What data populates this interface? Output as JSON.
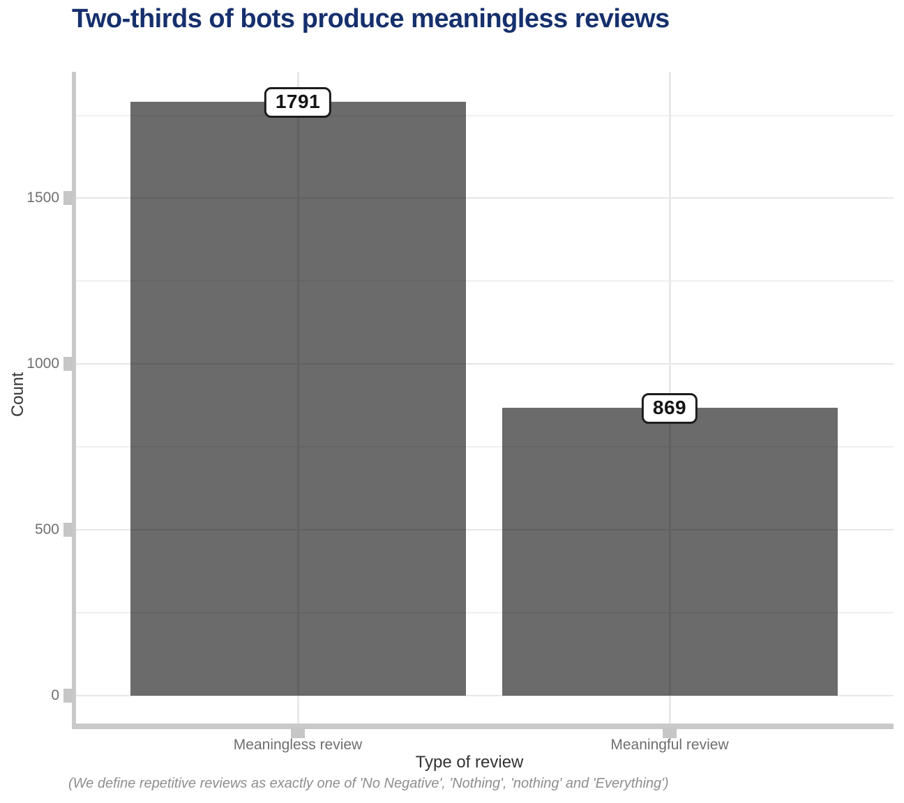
{
  "chart_data": {
    "type": "bar",
    "title": "Two-thirds of bots produce meaningless reviews",
    "categories": [
      "Meaningless review",
      "Meaningful review"
    ],
    "values": [
      1791,
      869
    ],
    "value_labels": [
      "1791",
      "869"
    ],
    "xlabel": "Type of review",
    "ylabel": "Count",
    "yticks": [
      0,
      500,
      1000,
      1500
    ],
    "ytick_labels": [
      "0",
      "500",
      "1000",
      "1500"
    ],
    "yminor_ticks": [
      250,
      750,
      1250,
      1750
    ],
    "ylim": [
      0,
      1880
    ],
    "grid": "horizontal major+minor, vertical major at category centers",
    "legend": "none",
    "caption": "(We define repetitive reviews as exactly one of 'No Negative', 'Nothing', 'nothing' and 'Everything')"
  },
  "colors": {
    "title": "#16306d",
    "bar": "#6b6b6b",
    "bar_rgba": "rgba(0,0,0,0.58)",
    "grid_major": "#e6e6e6",
    "grid_minor": "#efefef",
    "axis_line": "#c9c9c9",
    "tick_mark": "#c6c6c6",
    "tick_text": "#6f6f6f",
    "axis_title_text": "#333333",
    "caption_text": "#8e8e8e",
    "value_label_border": "#1c1c1c",
    "background": "#ffffff"
  }
}
